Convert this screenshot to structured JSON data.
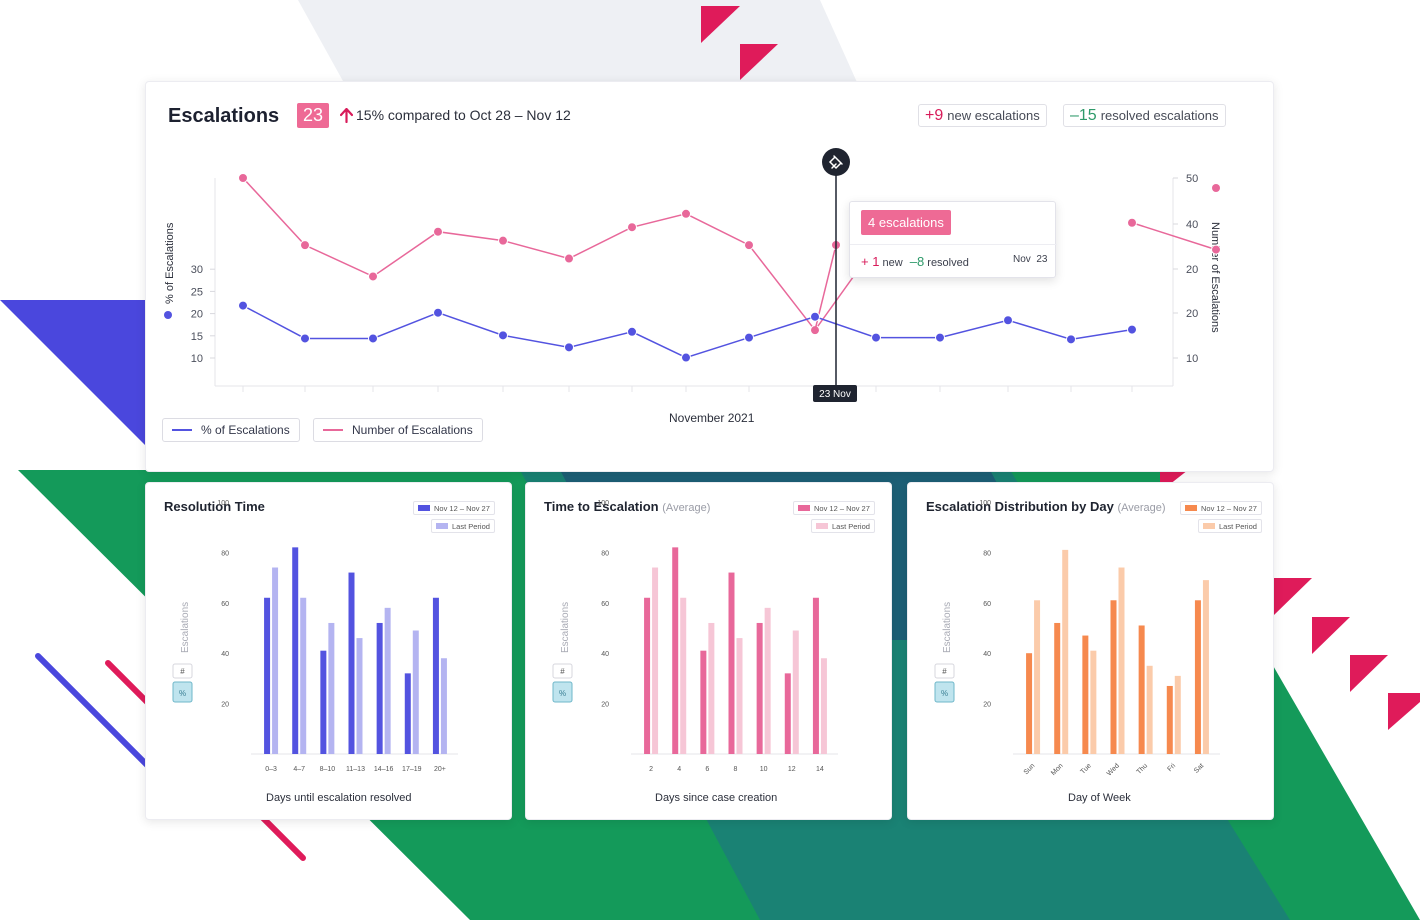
{
  "colors": {
    "blue": "#5353e0",
    "pink": "#e8689a",
    "green": "#149a5a",
    "magenta": "#df1b5a",
    "blue_light": "#b4b4f1",
    "pink_light": "#f6c6d6",
    "orange": "#f6894e",
    "orange_light": "#fbcbaa",
    "red_arrow": "#d81b5a",
    "neg_green": "#2e9a6a"
  },
  "header": {
    "title": "Escalations",
    "count": "23",
    "change_text": "15% compared to Oct 28 – Nov 12",
    "new_num": "+9",
    "new_label": "new escalations",
    "resolved_num": "–15",
    "resolved_label": "resolved escalations"
  },
  "main_chart": {
    "x_title": "November 2021",
    "left_axis_label": "% of Escalations",
    "right_axis_label": "Number of Escalations",
    "left_ticks": [
      "30",
      "25",
      "20",
      "15",
      "10"
    ],
    "right_ticks": [
      "50",
      "40",
      "20",
      "20",
      "10"
    ],
    "marker_label": "23 Nov",
    "pin_icon": "pin-icon",
    "tooltip": {
      "headline": "4 escalations",
      "new_num": "+ 1",
      "new_word": "new",
      "resolved_num": "–8",
      "resolved_word": "resolved",
      "date": "Nov  23"
    },
    "legend": [
      {
        "label": "% of Escalations",
        "color": "#5353e0"
      },
      {
        "label": "Number of Escalations",
        "color": "#e8689a"
      }
    ]
  },
  "cards": [
    {
      "title": "Resolution Time",
      "subtitle": "",
      "legend_current": "Nov 12 – Nov 27",
      "legend_prev": "Last Period",
      "x_title": "Days until escalation resolved",
      "y_label": "Escalations"
    },
    {
      "title": "Time to Escalation",
      "subtitle": "(Average)",
      "legend_current": "Nov 12 – Nov 27",
      "legend_prev": "Last Period",
      "x_title": "Days since case creation",
      "y_label": "Escalations"
    },
    {
      "title": "Escalation Distribution by Day",
      "subtitle": "(Average)",
      "legend_current": "Nov 12 – Nov 27",
      "legend_prev": "Last Period",
      "x_title": "Day of Week",
      "y_label": "Escalations"
    }
  ],
  "chart_data": [
    {
      "type": "line",
      "x": [
        "1",
        "3",
        "5",
        "7",
        "9",
        "11",
        "13",
        "15",
        "17",
        "19",
        "21",
        "23",
        "25",
        "27",
        "29",
        "30"
      ],
      "series": [
        {
          "name": "% of Escalations",
          "axis": "left",
          "values": [
            21.8,
            14.4,
            14.4,
            20.2,
            15.1,
            12.4,
            15.9,
            10.1,
            14.6,
            19.3,
            14.6,
            14.6,
            18.5,
            14.2,
            16.4,
            null
          ]
        },
        {
          "name": "Number of Escalations",
          "axis": "right",
          "values": [
            50,
            35,
            28,
            38,
            36,
            32,
            39,
            42,
            35,
            16,
            35,
            null,
            null,
            null,
            40,
            34
          ]
        }
      ],
      "y_left": [
        10,
        30
      ],
      "y_right": [
        10,
        50
      ],
      "x_label": "November 2021",
      "marker": "23 Nov"
    },
    {
      "type": "bar",
      "categories": [
        "0–3",
        "4–7",
        "8–10",
        "11–13",
        "14–16",
        "17–19",
        "20+"
      ],
      "series": [
        {
          "name": "Nov 12 – Nov 27",
          "values": [
            62,
            82,
            41,
            72,
            52,
            32,
            62
          ]
        },
        {
          "name": "Last Period",
          "values": [
            74,
            62,
            52,
            46,
            58,
            49,
            38
          ]
        }
      ],
      "y_ticks": [
        "100",
        "80",
        "60",
        "40",
        "20"
      ],
      "ylim": [
        0,
        100
      ],
      "xlabel": "Days until escalation resolved",
      "ylabel": "Escalations"
    },
    {
      "type": "bar",
      "categories": [
        "2",
        "4",
        "6",
        "8",
        "10",
        "12",
        "14"
      ],
      "series": [
        {
          "name": "Nov 12 – Nov 27",
          "values": [
            62,
            82,
            41,
            72,
            52,
            32,
            62
          ]
        },
        {
          "name": "Last Period",
          "values": [
            74,
            62,
            52,
            46,
            58,
            49,
            38
          ]
        }
      ],
      "y_ticks": [
        "100",
        "80",
        "60",
        "40",
        "20"
      ],
      "ylim": [
        0,
        100
      ],
      "xlabel": "Days since case creation",
      "ylabel": "Escalations"
    },
    {
      "type": "bar",
      "categories": [
        "Sun",
        "Mon",
        "Tue",
        "Wed",
        "Thu",
        "Fri",
        "Sat"
      ],
      "series": [
        {
          "name": "Nov 12 – Nov 27",
          "values": [
            40,
            52,
            47,
            61,
            51,
            27,
            61
          ]
        },
        {
          "name": "Last Period",
          "values": [
            61,
            81,
            41,
            74,
            35,
            31,
            69
          ]
        }
      ],
      "y_ticks": [
        "100",
        "80",
        "60",
        "40",
        "20"
      ],
      "ylim": [
        0,
        100
      ],
      "xlabel": "Day of Week",
      "ylabel": "Escalations"
    }
  ]
}
